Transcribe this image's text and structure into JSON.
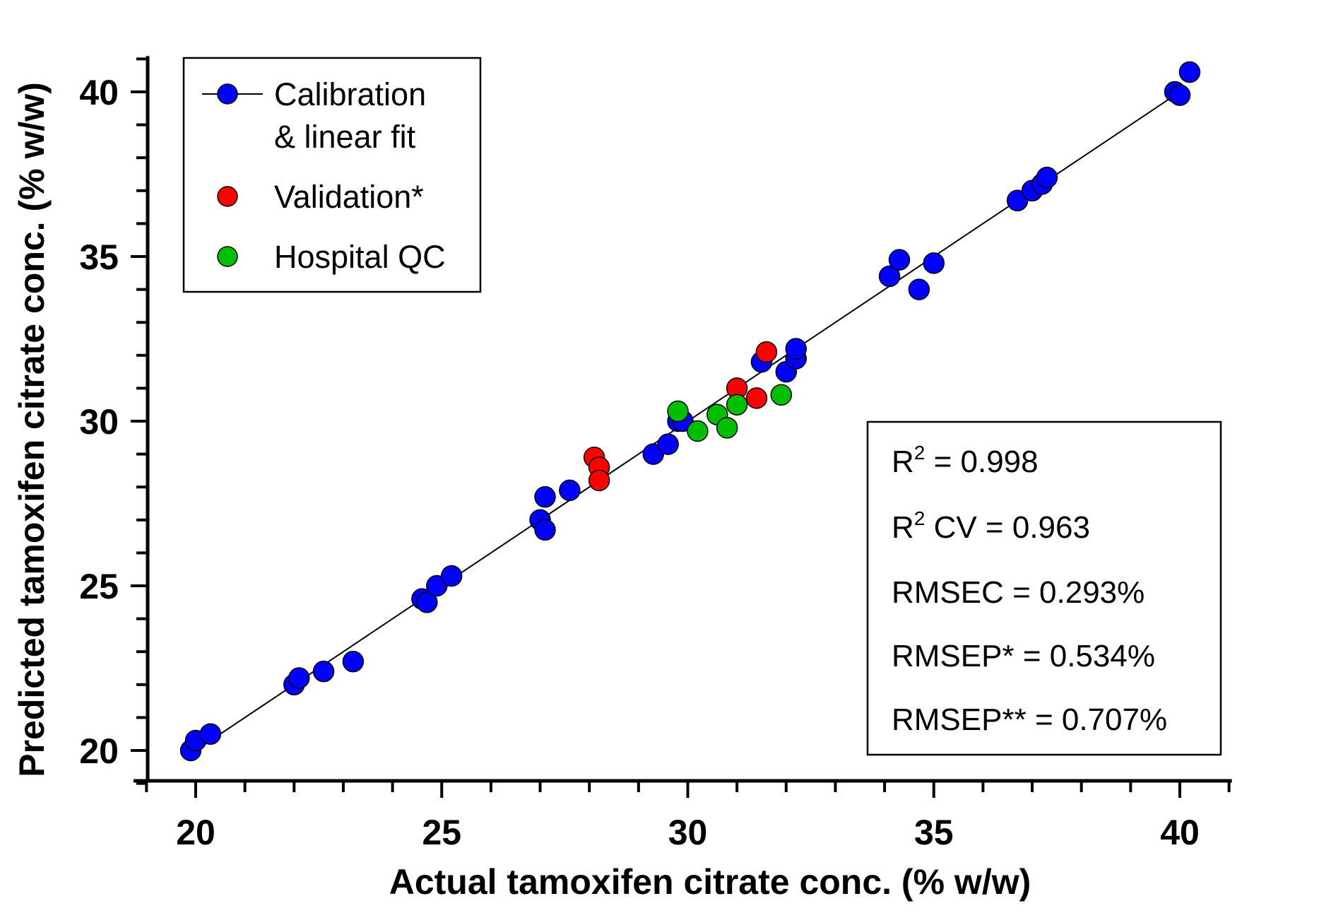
{
  "chart_data": {
    "type": "scatter",
    "xlabel": "Actual tamoxifen citrate conc. (% w/w)",
    "ylabel": "Predicted tamoxifen citrate conc. (% w/w)",
    "xlim": [
      19,
      41
    ],
    "ylim": [
      19,
      41
    ],
    "x_ticks": [
      20,
      25,
      30,
      35,
      40
    ],
    "y_ticks": [
      20,
      25,
      30,
      35,
      40
    ],
    "x_tick_labels": [
      "20",
      "25",
      "30",
      "35",
      "40"
    ],
    "y_tick_labels": [
      "20",
      "25",
      "30",
      "35",
      "40"
    ],
    "grid": false,
    "legend_position": "top-left",
    "fit_line": {
      "x": [
        20,
        40
      ],
      "y": [
        20,
        40
      ]
    },
    "series": [
      {
        "name": "Calibration",
        "name_line2": "& linear fit",
        "color": "#0000ff",
        "has_line": true,
        "points": [
          [
            19.9,
            20.0
          ],
          [
            20.0,
            20.3
          ],
          [
            20.3,
            20.5
          ],
          [
            22.0,
            22.0
          ],
          [
            22.1,
            22.2
          ],
          [
            22.6,
            22.4
          ],
          [
            23.2,
            22.7
          ],
          [
            24.6,
            24.6
          ],
          [
            24.7,
            24.5
          ],
          [
            24.9,
            25.0
          ],
          [
            25.2,
            25.3
          ],
          [
            27.0,
            27.0
          ],
          [
            27.1,
            26.7
          ],
          [
            27.1,
            27.7
          ],
          [
            27.6,
            27.9
          ],
          [
            29.3,
            29.0
          ],
          [
            29.6,
            29.3
          ],
          [
            29.8,
            30.0
          ],
          [
            29.9,
            30.0
          ],
          [
            31.5,
            31.8
          ],
          [
            32.0,
            31.5
          ],
          [
            32.2,
            31.9
          ],
          [
            32.2,
            32.2
          ],
          [
            34.1,
            34.4
          ],
          [
            34.3,
            34.9
          ],
          [
            34.7,
            34.0
          ],
          [
            35.0,
            34.8
          ],
          [
            36.7,
            36.7
          ],
          [
            37.0,
            37.0
          ],
          [
            37.2,
            37.2
          ],
          [
            37.3,
            37.4
          ],
          [
            39.9,
            40.0
          ],
          [
            40.0,
            39.9
          ],
          [
            40.2,
            40.6
          ]
        ]
      },
      {
        "name": "Validation*",
        "color": "#ff0000",
        "has_line": false,
        "points": [
          [
            28.1,
            28.9
          ],
          [
            28.2,
            28.6
          ],
          [
            28.2,
            28.2
          ],
          [
            31.0,
            31.0
          ],
          [
            31.4,
            30.7
          ],
          [
            31.6,
            32.1
          ]
        ]
      },
      {
        "name": "Hospital QC",
        "color": "#00bf00",
        "has_line": false,
        "points": [
          [
            29.8,
            30.3
          ],
          [
            30.2,
            29.7
          ],
          [
            30.6,
            30.2
          ],
          [
            30.8,
            29.8
          ],
          [
            31.0,
            30.5
          ],
          [
            31.9,
            30.8
          ]
        ]
      }
    ],
    "stats": [
      {
        "main": "R",
        "sup": "2",
        "rest": " = 0.998"
      },
      {
        "main": "R",
        "sup": "2",
        "rest": " CV = 0.963"
      },
      {
        "main": "RMSEC = 0.293%",
        "sup": "",
        "rest": ""
      },
      {
        "main": "RMSEP* = 0.534%",
        "sup": "",
        "rest": ""
      },
      {
        "main": "RMSEP** = 0.707%",
        "sup": "",
        "rest": ""
      }
    ]
  }
}
